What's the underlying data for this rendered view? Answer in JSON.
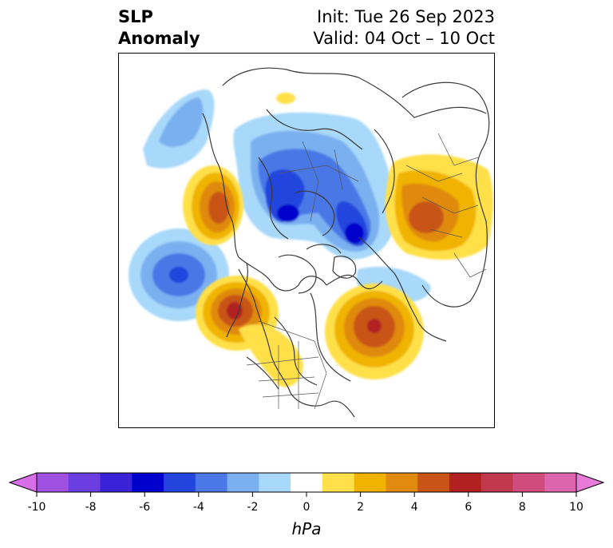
{
  "header": {
    "left_line1": "SLP",
    "left_line2": "Anomaly",
    "right_line1": "Init: Tue 26 Sep 2023",
    "right_line2": "Valid: 04 Oct – 10 Oct"
  },
  "colorbar": {
    "unit": "hPa",
    "tick_labels": [
      "-10",
      "-8",
      "-6",
      "-4",
      "-2",
      "0",
      "2",
      "4",
      "6",
      "8",
      "10"
    ],
    "colors": [
      "#d66ee8",
      "#a050e0",
      "#6a3ee0",
      "#3a22d8",
      "#0000cc",
      "#2244dd",
      "#4a78e6",
      "#7ab0f0",
      "#a8d8fa",
      "#ffffff",
      "#ffe04a",
      "#f0b400",
      "#e08a10",
      "#c85418",
      "#b02020",
      "#c0384c",
      "#d04c7c",
      "#dc64ac",
      "#e87ad8"
    ]
  },
  "map": {
    "projection": "north-polar-stereographic",
    "features": [
      {
        "name": "alaska-high",
        "sign": "positive",
        "max": 6
      },
      {
        "name": "labrador-high",
        "sign": "positive",
        "max": 6
      },
      {
        "name": "ural-high",
        "sign": "positive",
        "max": 6
      },
      {
        "name": "western-europe-high",
        "sign": "positive",
        "max": 6
      },
      {
        "name": "siberia-low",
        "sign": "negative",
        "min": -6
      },
      {
        "name": "barents-low",
        "sign": "negative",
        "min": -6
      },
      {
        "name": "atlantic-low",
        "sign": "negative",
        "min": -4
      },
      {
        "name": "kamchatka-low",
        "sign": "negative",
        "min": -4
      }
    ]
  }
}
